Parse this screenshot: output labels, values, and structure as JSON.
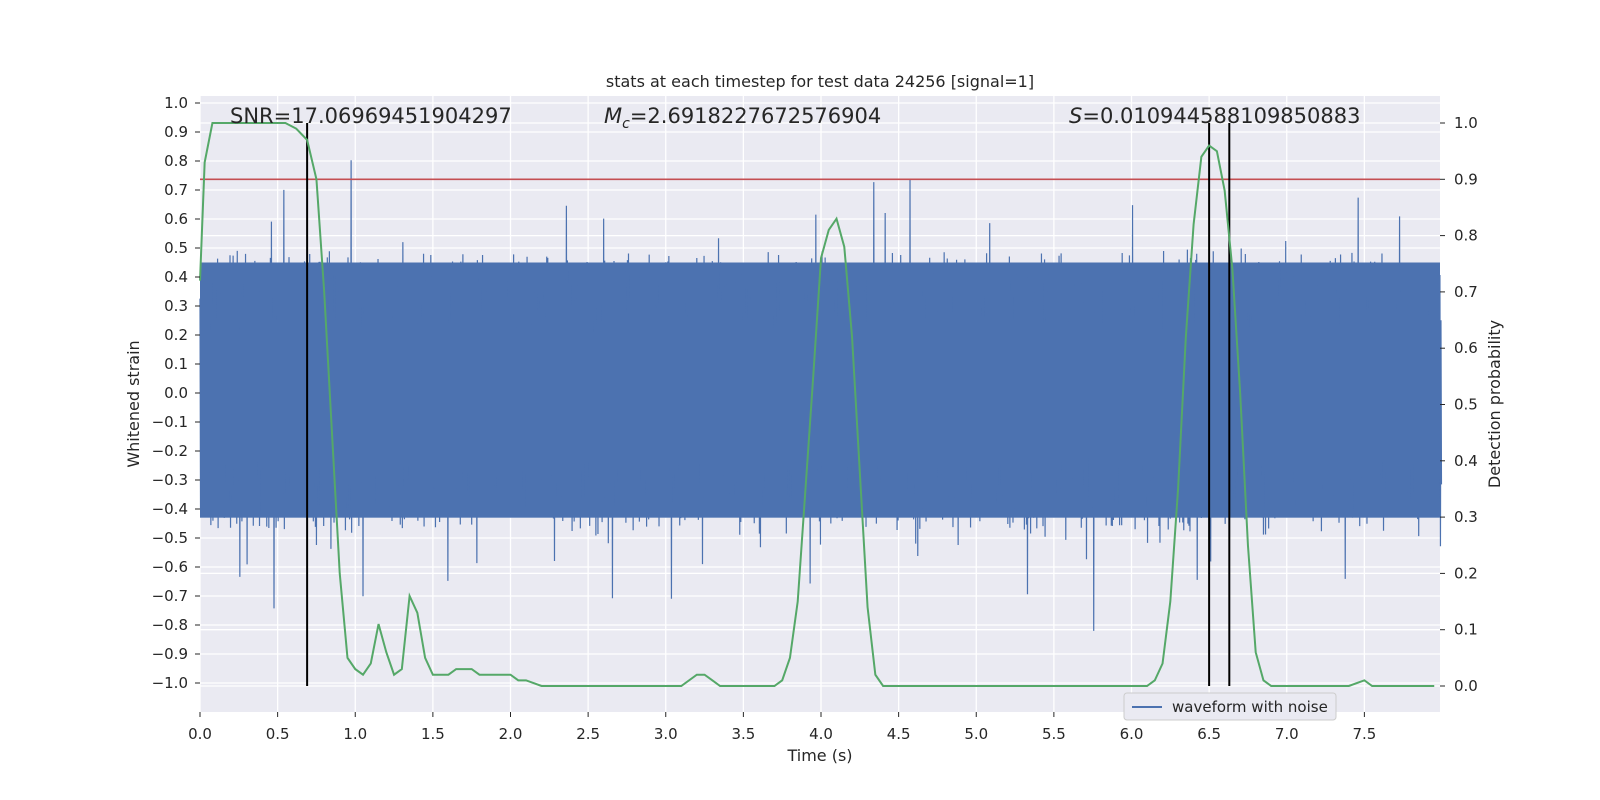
{
  "chart_data": {
    "type": "line",
    "title": "stats at each timestep for test data 24256 [signal=1]",
    "xlabel": "Time (s)",
    "ylabel": "Whitened strain",
    "y2label": "Detection probability",
    "xlim": [
      0.0,
      8.0
    ],
    "ylim": [
      -1.1,
      1.0
    ],
    "y2lim": [
      -0.05,
      1.04
    ],
    "xticks": [
      "0.0",
      "0.5",
      "1.0",
      "1.5",
      "2.0",
      "2.5",
      "3.0",
      "3.5",
      "4.0",
      "4.5",
      "5.0",
      "5.5",
      "6.0",
      "6.5",
      "7.0",
      "7.5"
    ],
    "xtick_values": [
      0,
      0.5,
      1,
      1.5,
      2,
      2.5,
      3,
      3.5,
      4,
      4.5,
      5,
      5.5,
      6,
      6.5,
      7,
      7.5
    ],
    "yticks": [
      "1.0",
      "0.9",
      "0.8",
      "0.7",
      "0.6",
      "0.5",
      "0.4",
      "0.3",
      "0.2",
      "0.1",
      "0.0",
      "−0.1",
      "−0.2",
      "−0.3",
      "−0.4",
      "−0.5",
      "−0.6",
      "−0.7",
      "−0.8",
      "−0.9",
      "−1.0"
    ],
    "ytick_values": [
      1.0,
      0.9,
      0.8,
      0.7,
      0.6,
      0.5,
      0.4,
      0.3,
      0.2,
      0.1,
      0.0,
      -0.1,
      -0.2,
      -0.3,
      -0.4,
      -0.5,
      -0.6,
      -0.7,
      -0.8,
      -0.9,
      -1.0
    ],
    "y2ticks": [
      "1.0",
      "0.9",
      "0.8",
      "0.7",
      "0.6",
      "0.5",
      "0.4",
      "0.3",
      "0.2",
      "0.1",
      "0.0"
    ],
    "y2tick_values": [
      1.0,
      0.9,
      0.8,
      0.7,
      0.6,
      0.5,
      0.4,
      0.3,
      0.2,
      0.1,
      0.0
    ],
    "grid": true,
    "legend": {
      "placement": "lower-right",
      "entries": [
        "waveform with noise"
      ]
    },
    "annotations": {
      "snr": "SNR=17.06969451904297",
      "mc_symbol": "M",
      "mc_sub": "c",
      "mc_value": "=2.6918227672576904",
      "s_symbol": "S",
      "s_value": "=0.010944588109850883"
    },
    "threshold_y2": 0.9,
    "vlines_x": [
      0.69,
      6.5,
      6.63
    ],
    "waveform": {
      "name": "waveform with noise",
      "description_range": [
        -0.98,
        0.92
      ],
      "band": [
        -0.43,
        0.45
      ]
    },
    "detection_probability": {
      "x": [
        0.0,
        0.03,
        0.08,
        0.15,
        0.25,
        0.35,
        0.45,
        0.55,
        0.62,
        0.69,
        0.75,
        0.8,
        0.85,
        0.9,
        0.95,
        1.0,
        1.05,
        1.1,
        1.15,
        1.2,
        1.25,
        1.3,
        1.35,
        1.4,
        1.45,
        1.5,
        1.55,
        1.6,
        1.65,
        1.7,
        1.75,
        1.8,
        1.85,
        1.9,
        2.0,
        2.05,
        2.1,
        2.2,
        2.3,
        2.4,
        2.5,
        2.6,
        2.7,
        2.8,
        2.9,
        3.0,
        3.1,
        3.2,
        3.25,
        3.3,
        3.35,
        3.4,
        3.5,
        3.6,
        3.7,
        3.75,
        3.8,
        3.85,
        3.9,
        3.95,
        4.0,
        4.05,
        4.1,
        4.15,
        4.2,
        4.25,
        4.3,
        4.35,
        4.4,
        4.45,
        4.5,
        4.6,
        4.7,
        4.8,
        4.9,
        5.0,
        5.1,
        5.2,
        5.3,
        5.4,
        5.5,
        5.6,
        5.7,
        5.8,
        5.9,
        6.0,
        6.1,
        6.15,
        6.2,
        6.25,
        6.3,
        6.35,
        6.4,
        6.45,
        6.5,
        6.55,
        6.6,
        6.65,
        6.7,
        6.75,
        6.8,
        6.85,
        6.9,
        6.95,
        7.0,
        7.1,
        7.2,
        7.3,
        7.4,
        7.5,
        7.55,
        7.6,
        7.65,
        7.7,
        7.75,
        7.8,
        7.85,
        7.9,
        7.95
      ],
      "y": [
        0.72,
        0.93,
        1.0,
        1.0,
        1.0,
        1.0,
        1.0,
        1.0,
        0.99,
        0.97,
        0.9,
        0.7,
        0.45,
        0.2,
        0.05,
        0.03,
        0.02,
        0.04,
        0.11,
        0.06,
        0.02,
        0.03,
        0.16,
        0.13,
        0.05,
        0.02,
        0.02,
        0.02,
        0.03,
        0.03,
        0.03,
        0.02,
        0.02,
        0.02,
        0.02,
        0.01,
        0.01,
        0.0,
        0.0,
        0.0,
        0.0,
        0.0,
        0.0,
        0.0,
        0.0,
        0.0,
        0.0,
        0.02,
        0.02,
        0.01,
        0.0,
        0.0,
        0.0,
        0.0,
        0.0,
        0.01,
        0.05,
        0.15,
        0.35,
        0.55,
        0.76,
        0.81,
        0.83,
        0.78,
        0.62,
        0.38,
        0.14,
        0.02,
        0.0,
        0.0,
        0.0,
        0.0,
        0.0,
        0.0,
        0.0,
        0.0,
        0.0,
        0.0,
        0.0,
        0.0,
        0.0,
        0.0,
        0.0,
        0.0,
        0.0,
        0.0,
        0.0,
        0.01,
        0.04,
        0.15,
        0.35,
        0.62,
        0.82,
        0.94,
        0.96,
        0.95,
        0.88,
        0.74,
        0.52,
        0.25,
        0.06,
        0.01,
        0.0,
        0.0,
        0.0,
        0.0,
        0.0,
        0.0,
        0.0,
        0.01,
        0.0,
        0.0,
        0.0,
        0.0,
        0.0,
        0.0,
        0.0,
        0.0,
        0.0
      ]
    },
    "colors": {
      "waveform": "#4c72b0",
      "detection": "#55a868",
      "threshold": "#c44e52",
      "vline": "#000000",
      "plot_bg": "#eaeaf2",
      "grid": "#ffffff"
    }
  }
}
